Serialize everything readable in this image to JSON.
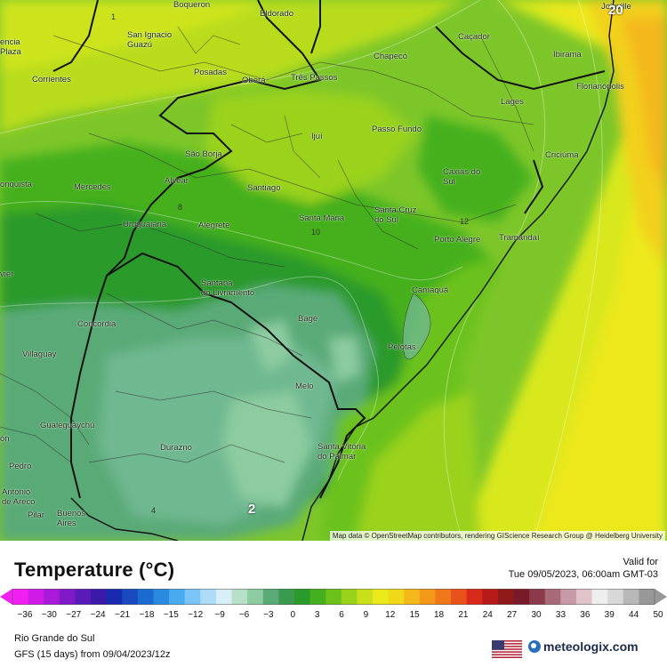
{
  "map": {
    "places": [
      {
        "name": "Boqueron"
      },
      {
        "name": "Joinville"
      },
      {
        "name": "Eldorado"
      },
      {
        "name": "Caçador"
      },
      {
        "name": "San Ignacio\nGuazú"
      },
      {
        "name": "Chapecó"
      },
      {
        "name": "Ibirama"
      },
      {
        "name": "encia\nPlaza"
      },
      {
        "name": "Posadas"
      },
      {
        "name": "Oberá"
      },
      {
        "name": "Três Passos"
      },
      {
        "name": "Florianópolis"
      },
      {
        "name": "Corrientes"
      },
      {
        "name": "Lages"
      },
      {
        "name": "Passo Fundo"
      },
      {
        "name": "Ijuí"
      },
      {
        "name": "São Borja"
      },
      {
        "name": "Criciúma"
      },
      {
        "name": "Caxias do\nSul"
      },
      {
        "name": "onquista"
      },
      {
        "name": "Mercedes"
      },
      {
        "name": "Alvear"
      },
      {
        "name": "Santiago"
      },
      {
        "name": "Santa Cruz\ndo Sul"
      },
      {
        "name": "Santa Maria"
      },
      {
        "name": "Uruguaiana"
      },
      {
        "name": "Alegrete"
      },
      {
        "name": "Porto Alegre"
      },
      {
        "name": "Tramandaí"
      },
      {
        "name": "vier"
      },
      {
        "name": "Santana\ndo Livramento"
      },
      {
        "name": "Camaquã"
      },
      {
        "name": "Concordia"
      },
      {
        "name": "Bagé"
      },
      {
        "name": "Pelotas"
      },
      {
        "name": "Villaguay"
      },
      {
        "name": "Melo"
      },
      {
        "name": "Gualeguaychú"
      },
      {
        "name": "Durazno"
      },
      {
        "name": "Santa Vitória\ndo Palmar"
      },
      {
        "name": "ón"
      },
      {
        "name": "Pedro"
      },
      {
        "name": "Antonio\nde Areco"
      },
      {
        "name": "Pilar"
      },
      {
        "name": "Buenos\nAires"
      }
    ],
    "contour_labels": [
      "20",
      "8",
      "10",
      "12",
      "2",
      "4",
      "1"
    ],
    "attribution": "Map data © OpenStreetMap contributors, rendering GIScience Research Group @ Heidelberg University"
  },
  "footer": {
    "title": "Temperature (°C)",
    "valid_label": "Valid for",
    "valid_time": "Tue 09/05/2023, 06:00am GMT-03",
    "region": "Rio Grande do Sul",
    "model": "GFS (15 days) from  09/04/2023/12z",
    "brand": "meteologix.com"
  },
  "legend": {
    "ticks": [
      "−36",
      "−30",
      "−27",
      "−24",
      "−21",
      "−18",
      "−15",
      "−12",
      "−9",
      "−6",
      "−3",
      "0",
      "3",
      "6",
      "9",
      "12",
      "15",
      "18",
      "21",
      "24",
      "27",
      "30",
      "33",
      "36",
      "39",
      "44",
      "50"
    ],
    "colors": [
      "#f21ff2",
      "#d01ae8",
      "#a81ad8",
      "#801ac8",
      "#5a1ab8",
      "#3a1aa8",
      "#1a2ab0",
      "#1a4ac0",
      "#1a6ad0",
      "#2a8ae0",
      "#4aaaf0",
      "#7ac4f8",
      "#aedcf8",
      "#d8eef8",
      "#b8e0c8",
      "#8ccca0",
      "#5aaa78",
      "#3a9a50",
      "#2a9a2a",
      "#44b01e",
      "#6cc21a",
      "#9ad21a",
      "#c8e01a",
      "#eaea1a",
      "#f0d81a",
      "#f4b81a",
      "#f4981a",
      "#f0781a",
      "#e8521a",
      "#d82a1a",
      "#b81a1a",
      "#901a1a",
      "#781a2a",
      "#8a3a4a",
      "#a86a78",
      "#c89aa8",
      "#e0c4cc",
      "#eeeeee",
      "#d8d8d8",
      "#b8b8b8",
      "#989898"
    ]
  }
}
